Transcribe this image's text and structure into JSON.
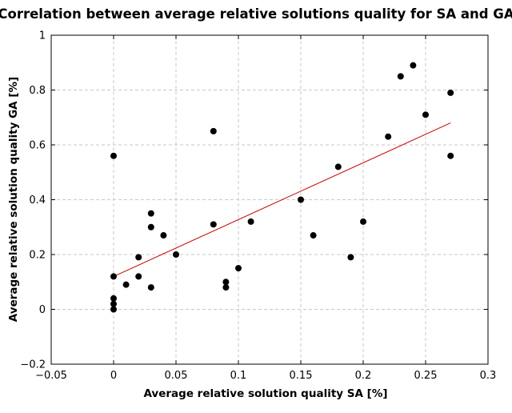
{
  "chart_data": {
    "type": "scatter",
    "title": "Correlation between average relative solutions quality for SA and GA",
    "xlabel": "Average relative solution quality SA [%]",
    "ylabel": "Average relative solution quality GA [%]",
    "xlim": [
      -0.05,
      0.3
    ],
    "ylim": [
      -0.2,
      1.0
    ],
    "x_ticks": [
      -0.05,
      0,
      0.05,
      0.1,
      0.15,
      0.2,
      0.25,
      0.3
    ],
    "x_tick_labels": [
      "−0.05",
      "0",
      "0.05",
      "0.1",
      "0.15",
      "0.2",
      "0.25",
      "0.3"
    ],
    "y_ticks": [
      -0.2,
      0,
      0.2,
      0.4,
      0.6,
      0.8,
      1.0
    ],
    "y_tick_labels": [
      "−0.2",
      "0",
      "0.2",
      "0.4",
      "0.6",
      "0.8",
      "1"
    ],
    "grid": true,
    "marker_color": "#000000",
    "trendline_color": "#cc0000",
    "series": [
      {
        "points": [
          [
            0.0,
            0.56
          ],
          [
            0.0,
            0.12
          ],
          [
            0.0,
            0.04
          ],
          [
            0.0,
            0.02
          ],
          [
            0.0,
            0.0
          ],
          [
            0.01,
            0.09
          ],
          [
            0.02,
            0.19
          ],
          [
            0.02,
            0.12
          ],
          [
            0.03,
            0.35
          ],
          [
            0.03,
            0.3
          ],
          [
            0.03,
            0.08
          ],
          [
            0.04,
            0.27
          ],
          [
            0.05,
            0.2
          ],
          [
            0.08,
            0.65
          ],
          [
            0.08,
            0.31
          ],
          [
            0.09,
            0.1
          ],
          [
            0.09,
            0.08
          ],
          [
            0.1,
            0.15
          ],
          [
            0.11,
            0.32
          ],
          [
            0.15,
            0.4
          ],
          [
            0.16,
            0.27
          ],
          [
            0.18,
            0.52
          ],
          [
            0.19,
            0.19
          ],
          [
            0.2,
            0.32
          ],
          [
            0.22,
            0.63
          ],
          [
            0.23,
            0.85
          ],
          [
            0.24,
            0.89
          ],
          [
            0.25,
            0.71
          ],
          [
            0.27,
            0.79
          ],
          [
            0.27,
            0.56
          ]
        ]
      }
    ],
    "trendline": {
      "x": [
        0.0,
        0.27
      ],
      "y": [
        0.12,
        0.68
      ]
    }
  }
}
